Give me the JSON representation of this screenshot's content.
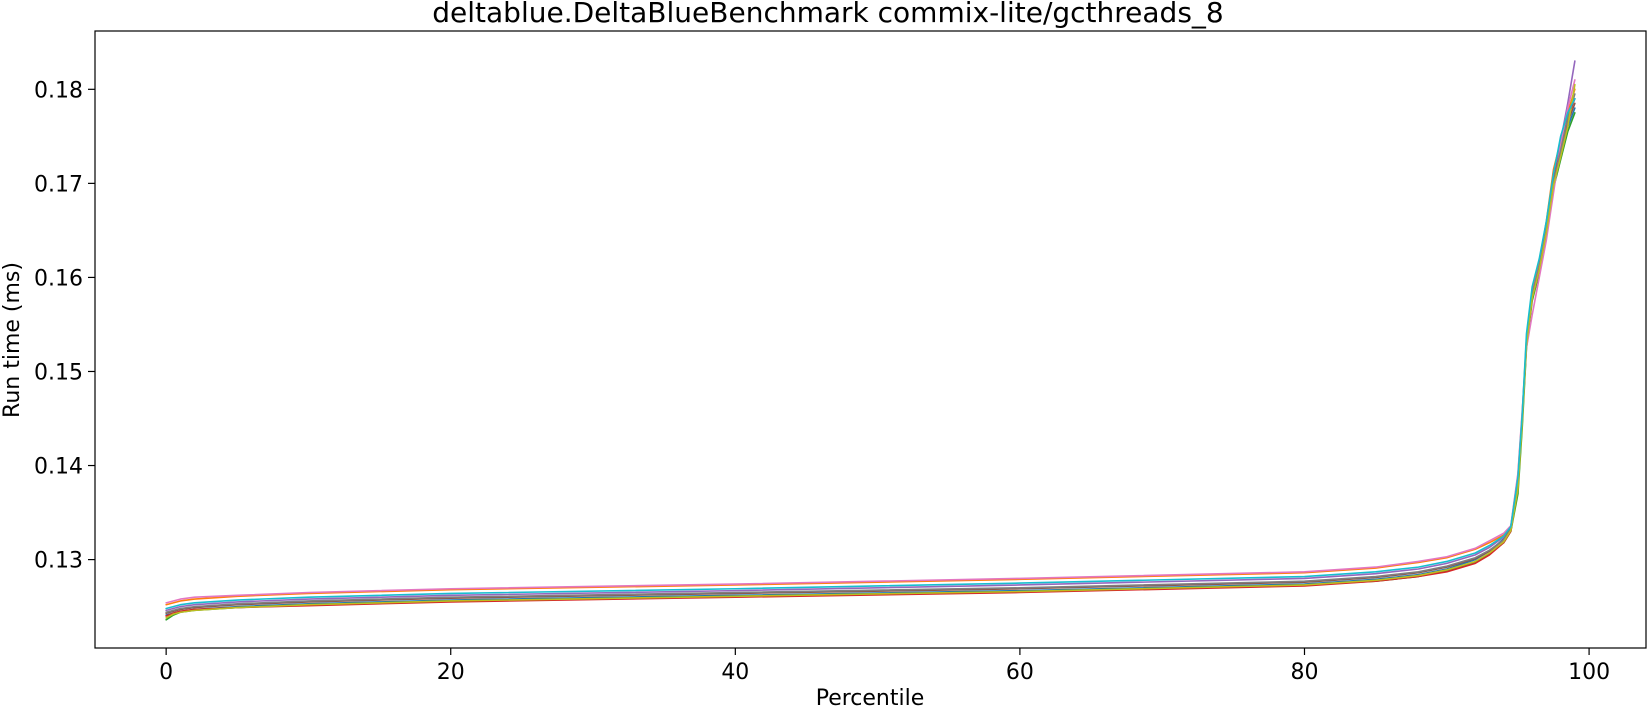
{
  "chart_data": {
    "type": "line",
    "title": "deltablue.DeltaBlueBenchmark commix-lite/gcthreads_8",
    "xlabel": "Percentile",
    "ylabel": "Run time (ms)",
    "xlim": [
      -5,
      104
    ],
    "ylim": [
      0.1206,
      0.1862
    ],
    "xticks": [
      0,
      20,
      40,
      60,
      80,
      100
    ],
    "yticks": [
      0.13,
      0.14,
      0.15,
      0.16,
      0.17,
      0.18
    ],
    "grid": false,
    "legend": "none",
    "x": [
      0,
      0.5,
      1,
      2,
      5,
      10,
      20,
      40,
      60,
      80,
      85,
      88,
      90,
      92,
      93,
      94,
      94.5,
      95,
      95.3,
      95.6,
      96,
      96.5,
      97,
      97.5,
      98,
      98.5,
      99
    ],
    "series": [
      {
        "color": "#1f77b4",
        "values": [
          0.1241,
          0.1243,
          0.1245,
          0.1247,
          0.125,
          0.1253,
          0.1257,
          0.1262,
          0.1267,
          0.1274,
          0.1279,
          0.1284,
          0.129,
          0.13,
          0.1309,
          0.1322,
          0.1335,
          0.138,
          0.145,
          0.153,
          0.158,
          0.161,
          0.165,
          0.17,
          0.173,
          0.176,
          0.178
        ]
      },
      {
        "color": "#ff7f0e",
        "values": [
          0.1252,
          0.1254,
          0.1256,
          0.1258,
          0.1261,
          0.1264,
          0.1268,
          0.1273,
          0.1279,
          0.1286,
          0.1291,
          0.1297,
          0.1302,
          0.1311,
          0.1318,
          0.1326,
          0.1335,
          0.139,
          0.1455,
          0.1535,
          0.1585,
          0.1615,
          0.166,
          0.1715,
          0.1745,
          0.1775,
          0.18
        ]
      },
      {
        "color": "#2ca02c",
        "values": [
          0.1236,
          0.1241,
          0.1244,
          0.1246,
          0.1249,
          0.1252,
          0.1256,
          0.1261,
          0.1266,
          0.1273,
          0.1277,
          0.1282,
          0.1288,
          0.1297,
          0.1306,
          0.1318,
          0.133,
          0.137,
          0.144,
          0.1525,
          0.1575,
          0.1605,
          0.1645,
          0.1695,
          0.1725,
          0.1755,
          0.1775
        ]
      },
      {
        "color": "#d62728",
        "values": [
          0.124,
          0.1243,
          0.1245,
          0.1247,
          0.1249,
          0.1251,
          0.1255,
          0.126,
          0.1265,
          0.1272,
          0.1277,
          0.1282,
          0.1287,
          0.1296,
          0.1305,
          0.1318,
          0.133,
          0.1378,
          0.1448,
          0.1528,
          0.1578,
          0.1608,
          0.1648,
          0.1705,
          0.174,
          0.177,
          0.179
        ]
      },
      {
        "color": "#9467bd",
        "values": [
          0.1246,
          0.1248,
          0.125,
          0.1252,
          0.1255,
          0.1258,
          0.1262,
          0.1267,
          0.1273,
          0.128,
          0.1285,
          0.129,
          0.1296,
          0.1305,
          0.1313,
          0.1324,
          0.1335,
          0.1385,
          0.1452,
          0.1532,
          0.1582,
          0.1612,
          0.1652,
          0.171,
          0.1745,
          0.1785,
          0.183
        ]
      },
      {
        "color": "#8c564b",
        "values": [
          0.1243,
          0.1245,
          0.1247,
          0.1249,
          0.1252,
          0.1255,
          0.1259,
          0.1264,
          0.1269,
          0.1276,
          0.1281,
          0.1286,
          0.1292,
          0.1301,
          0.1309,
          0.1321,
          0.1333,
          0.1382,
          0.145,
          0.153,
          0.158,
          0.161,
          0.165,
          0.17,
          0.1735,
          0.1765,
          0.1785
        ]
      },
      {
        "color": "#e377c2",
        "values": [
          0.1254,
          0.1256,
          0.1258,
          0.126,
          0.1262,
          0.1265,
          0.1269,
          0.1274,
          0.128,
          0.1287,
          0.1292,
          0.1298,
          0.1303,
          0.1312,
          0.132,
          0.1328,
          0.1336,
          0.1392,
          0.1458,
          0.1525,
          0.156,
          0.16,
          0.164,
          0.169,
          0.174,
          0.178,
          0.181
        ]
      },
      {
        "color": "#7f7f7f",
        "values": [
          0.1244,
          0.1246,
          0.1248,
          0.125,
          0.1253,
          0.1256,
          0.126,
          0.1265,
          0.127,
          0.1277,
          0.1282,
          0.1287,
          0.1293,
          0.1302,
          0.131,
          0.1321,
          0.1332,
          0.138,
          0.145,
          0.153,
          0.158,
          0.161,
          0.165,
          0.17,
          0.1735,
          0.177,
          0.1795
        ]
      },
      {
        "color": "#bcbd22",
        "values": [
          0.1238,
          0.1242,
          0.1244,
          0.1246,
          0.1249,
          0.1252,
          0.1256,
          0.1261,
          0.1266,
          0.1273,
          0.1278,
          0.1283,
          0.1289,
          0.1298,
          0.1307,
          0.1319,
          0.1331,
          0.1375,
          0.1445,
          0.1528,
          0.1578,
          0.1608,
          0.1648,
          0.1698,
          0.1728,
          0.176,
          0.1805
        ]
      },
      {
        "color": "#17becf",
        "values": [
          0.1248,
          0.125,
          0.1252,
          0.1254,
          0.1257,
          0.126,
          0.1264,
          0.1269,
          0.1275,
          0.1282,
          0.1287,
          0.1292,
          0.1298,
          0.1307,
          0.1315,
          0.1325,
          0.1335,
          0.1388,
          0.1454,
          0.154,
          0.159,
          0.162,
          0.166,
          0.171,
          0.175,
          0.1775,
          0.179
        ]
      }
    ]
  }
}
